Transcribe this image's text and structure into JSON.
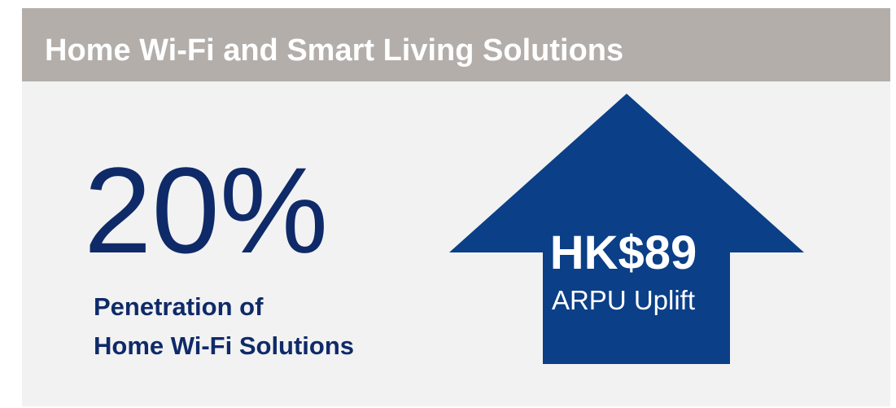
{
  "header": {
    "title": "Home Wi-Fi and Smart Living Solutions"
  },
  "stats": [
    {
      "value": "20%",
      "label_lines": [
        "Penetration of",
        "Home Wi-Fi Solutions"
      ]
    },
    {
      "value": "HK$89",
      "label_lines": [
        "ARPU Uplift"
      ]
    }
  ]
}
